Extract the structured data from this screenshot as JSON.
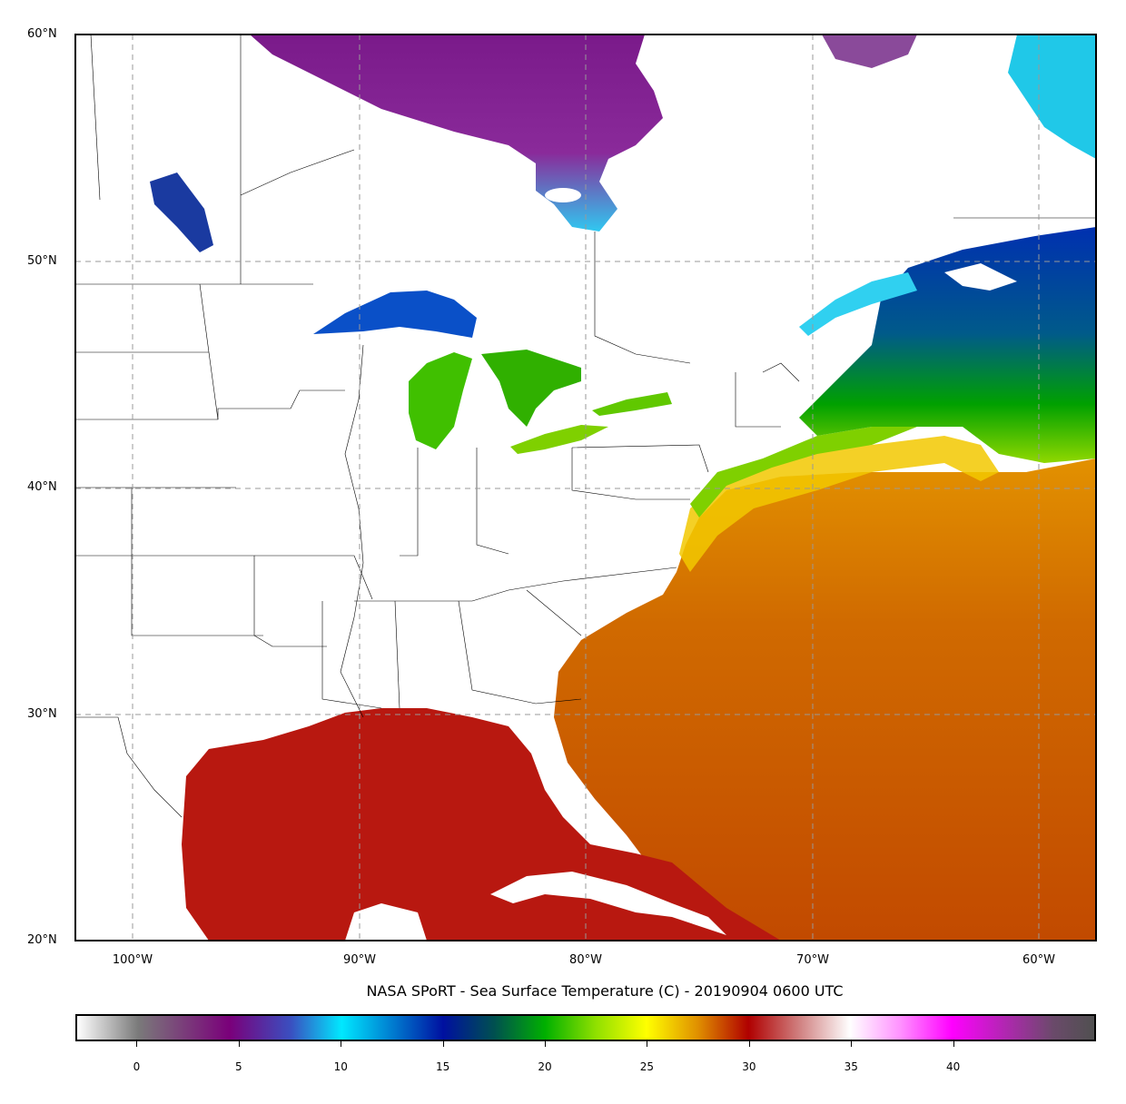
{
  "title": "NASA SPoRT - Sea Surface Temperature (C) - 20190904 0600 UTC",
  "lat_labels": [
    "60°N",
    "50°N",
    "40°N",
    "30°N",
    "20°N"
  ],
  "lon_labels": [
    "100°W",
    "90°W",
    "80°W",
    "70°W",
    "60°W"
  ],
  "colorbar": {
    "ticks": [
      "0",
      "5",
      "10",
      "15",
      "20",
      "25",
      "30",
      "35",
      "40"
    ],
    "min": -3,
    "max": 47,
    "stops": [
      {
        "v": -3,
        "c": "#ffffff"
      },
      {
        "v": 0,
        "c": "#7a7a7a"
      },
      {
        "v": 4.5,
        "c": "#7a007a"
      },
      {
        "v": 7.5,
        "c": "#3a4fc0"
      },
      {
        "v": 10,
        "c": "#00e8ff"
      },
      {
        "v": 15,
        "c": "#0010a0"
      },
      {
        "v": 17.5,
        "c": "#005050"
      },
      {
        "v": 20,
        "c": "#00b000"
      },
      {
        "v": 22.5,
        "c": "#90e000"
      },
      {
        "v": 25,
        "c": "#ffff00"
      },
      {
        "v": 27.5,
        "c": "#e09000"
      },
      {
        "v": 30,
        "c": "#b00000"
      },
      {
        "v": 32.5,
        "c": "#d08080"
      },
      {
        "v": 35,
        "c": "#ffffff"
      },
      {
        "v": 37.5,
        "c": "#ff90ff"
      },
      {
        "v": 40,
        "c": "#ff00ff"
      },
      {
        "v": 45,
        "c": "#6a4a6a"
      },
      {
        "v": 47,
        "c": "#505050"
      }
    ]
  },
  "colors": {
    "gulf": "#bb1a10",
    "atlantic_south": "#c85a00",
    "atlantic_mid": "#e08a00",
    "gulfstream": "#f0d000",
    "coastal_green": "#7fd000",
    "nova_scotia_blue": "#0040c0",
    "hudson_purple": "#7a1a8a",
    "hudson_cyan": "#30d0f0",
    "great_lakes_blue": "#0050c8",
    "great_lakes_green": "#40c000",
    "land": "#ffffff"
  }
}
